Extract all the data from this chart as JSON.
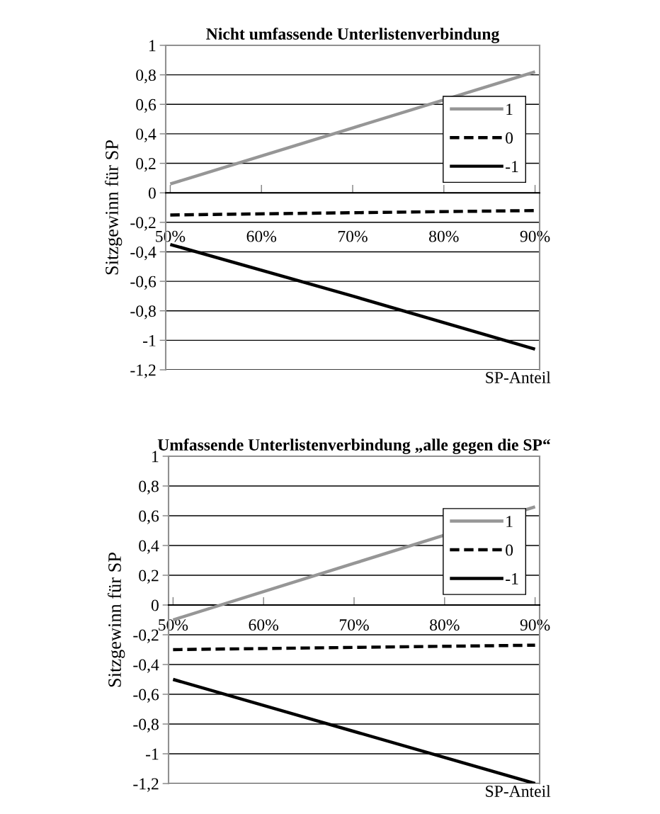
{
  "chart_data": [
    {
      "type": "line",
      "title": "Nicht umfassende Unterlistenverbindung",
      "xlabel": "SP-Anteil",
      "ylabel": "Sitzgewinn für SP",
      "xlim": [
        49.5,
        90.5
      ],
      "xticks": [
        {
          "value": 50,
          "label": "50%"
        },
        {
          "value": 60,
          "label": "60%"
        },
        {
          "value": 70,
          "label": "70%"
        },
        {
          "value": 80,
          "label": "80%"
        },
        {
          "value": 90,
          "label": "90%"
        }
      ],
      "ylim": [
        -1.2,
        1
      ],
      "yticks": [
        {
          "value": -1.2,
          "label": "-1,2"
        },
        {
          "value": -1,
          "label": "-1"
        },
        {
          "value": -0.8,
          "label": "-0,8"
        },
        {
          "value": -0.6,
          "label": "-0,6"
        },
        {
          "value": -0.4,
          "label": "-0,4"
        },
        {
          "value": -0.2,
          "label": "-0,2"
        },
        {
          "value": 0,
          "label": "0"
        },
        {
          "value": 0.2,
          "label": "0,2"
        },
        {
          "value": 0.4,
          "label": "0,4"
        },
        {
          "value": 0.6,
          "label": "0,6"
        },
        {
          "value": 0.8,
          "label": "0,8"
        },
        {
          "value": 1,
          "label": "1"
        }
      ],
      "grid": "y",
      "legend": "right",
      "marker": "none",
      "series": [
        {
          "name": "1",
          "color": "#969696",
          "x": [
            50,
            70,
            90
          ],
          "values": [
            0.06,
            0.44,
            0.82
          ],
          "line_style": "solid"
        },
        {
          "name": "0",
          "color": "#000000",
          "x": [
            50,
            70,
            90
          ],
          "values": [
            -0.15,
            -0.135,
            -0.12
          ],
          "line_style": "dashed"
        },
        {
          "name": "-1",
          "color": "#000000",
          "x": [
            50,
            70,
            90
          ],
          "values": [
            -0.35,
            -0.7,
            -1.06
          ],
          "line_style": "solid"
        }
      ]
    },
    {
      "type": "line",
      "title": "Umfassende Unterlistenverbindung „alle gegen die SP“",
      "xlabel": "SP-Anteil",
      "ylabel": "Sitzgewinn für SP",
      "xlim": [
        49.5,
        90.5
      ],
      "xticks": [
        {
          "value": 50,
          "label": "50%"
        },
        {
          "value": 60,
          "label": "60%"
        },
        {
          "value": 70,
          "label": "70%"
        },
        {
          "value": 80,
          "label": "80%"
        },
        {
          "value": 90,
          "label": "90%"
        }
      ],
      "ylim": [
        -1.2,
        1
      ],
      "yticks": [
        {
          "value": -1.2,
          "label": "-1,2"
        },
        {
          "value": -1,
          "label": "-1"
        },
        {
          "value": -0.8,
          "label": "-0,8"
        },
        {
          "value": -0.6,
          "label": "-0,6"
        },
        {
          "value": -0.4,
          "label": "-0,4"
        },
        {
          "value": -0.2,
          "label": "-0,2"
        },
        {
          "value": 0,
          "label": "0"
        },
        {
          "value": 0.2,
          "label": "0,2"
        },
        {
          "value": 0.4,
          "label": "0,4"
        },
        {
          "value": 0.6,
          "label": "0,6"
        },
        {
          "value": 0.8,
          "label": "0,8"
        },
        {
          "value": 1,
          "label": "1"
        }
      ],
      "grid": "y",
      "legend": "right",
      "marker": "none",
      "series": [
        {
          "name": "1",
          "color": "#969696",
          "x": [
            50,
            70,
            90
          ],
          "values": [
            -0.1,
            0.28,
            0.66
          ],
          "line_style": "solid"
        },
        {
          "name": "0",
          "color": "#000000",
          "x": [
            50,
            70,
            90
          ],
          "values": [
            -0.3,
            -0.285,
            -0.27
          ],
          "line_style": "dashed"
        },
        {
          "name": "-1",
          "color": "#000000",
          "x": [
            50,
            70,
            90
          ],
          "values": [
            -0.5,
            -0.85,
            -1.2
          ],
          "line_style": "solid"
        }
      ]
    }
  ]
}
